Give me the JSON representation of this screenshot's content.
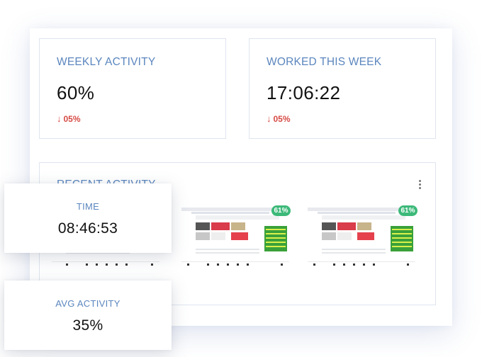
{
  "weekly_activity": {
    "label": "WEEKLY ACTIVITY",
    "value": "60%",
    "delta": "05%",
    "delta_icon": "arrow-down-icon",
    "delta_color": "#d64a44"
  },
  "worked_this_week": {
    "label": "WORKED THIS WEEK",
    "value": "17:06:22",
    "delta": "05%",
    "delta_icon": "arrow-down-icon",
    "delta_color": "#d64a44"
  },
  "recent_activity": {
    "title": "RECENT ACTIVITY",
    "menu_icon": "more-vertical-icon",
    "screenshots": [
      {
        "activity": null
      },
      {
        "activity": "61%"
      },
      {
        "activity": "61%"
      }
    ]
  },
  "time_card": {
    "label": "TIME",
    "value": "08:46:53"
  },
  "avg_activity_card": {
    "label": "AVG ACTIVITY",
    "value": "35%"
  },
  "colors": {
    "label_blue": "#5b86be",
    "badge_green": "#3cb979",
    "decrease_red": "#d64a44"
  }
}
